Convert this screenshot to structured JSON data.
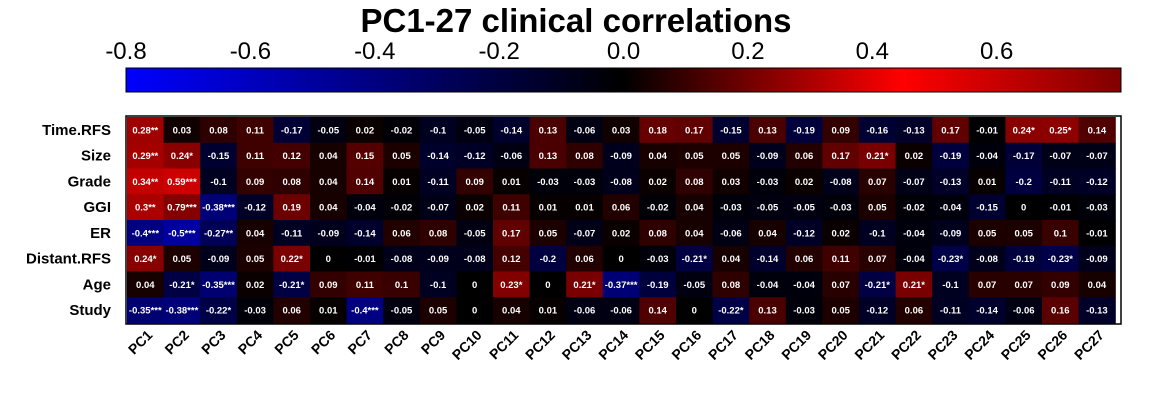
{
  "chart_data": {
    "type": "heatmap",
    "title": "PC1-27 clinical correlations",
    "colorbar": {
      "range": [
        -0.8,
        0.8
      ],
      "ticks": [
        "-0.8",
        "-0.6",
        "-0.4",
        "-0.2",
        "0.0",
        "0.2",
        "0.4",
        "0.6"
      ],
      "tick_values": [
        -0.8,
        -0.6,
        -0.4,
        -0.2,
        0.0,
        0.2,
        0.4,
        0.6
      ],
      "colors": [
        "#0000FF",
        "#000000",
        "#FF0000",
        "#800000"
      ]
    },
    "rows": [
      "Time.RFS",
      "Size",
      "Grade",
      "GGI",
      "ER",
      "Distant.RFS",
      "Age",
      "Study"
    ],
    "columns": [
      "PC1",
      "PC2",
      "PC3",
      "PC4",
      "PC5",
      "PC6",
      "PC7",
      "PC8",
      "PC9",
      "PC10",
      "PC11",
      "PC12",
      "PC13",
      "PC14",
      "PC15",
      "PC16",
      "PC17",
      "PC18",
      "PC19",
      "PC20",
      "PC21",
      "PC22",
      "PC23",
      "PC24",
      "PC25",
      "PC26",
      "PC27"
    ],
    "values": [
      [
        0.28,
        0.03,
        0.08,
        0.11,
        -0.17,
        -0.05,
        0.02,
        -0.02,
        -0.1,
        -0.05,
        -0.14,
        0.13,
        -0.06,
        0.03,
        0.18,
        0.17,
        -0.15,
        0.13,
        -0.19,
        0.09,
        -0.16,
        -0.13,
        0.17,
        -0.01,
        0.24,
        0.25,
        0.14
      ],
      [
        0.29,
        0.24,
        -0.15,
        0.11,
        0.12,
        0.04,
        0.15,
        0.05,
        -0.14,
        -0.12,
        -0.06,
        0.13,
        0.08,
        -0.09,
        0.04,
        0.05,
        0.05,
        -0.09,
        0.06,
        0.17,
        0.21,
        0.02,
        -0.19,
        -0.04,
        -0.17,
        -0.07,
        -0.07
      ],
      [
        0.34,
        0.59,
        -0.1,
        0.09,
        0.08,
        0.04,
        0.14,
        0.01,
        -0.11,
        0.09,
        0.01,
        -0.03,
        -0.03,
        -0.08,
        0.02,
        0.08,
        0.03,
        -0.03,
        0.02,
        -0.08,
        0.07,
        -0.07,
        -0.13,
        0.01,
        -0.2,
        -0.11,
        -0.12
      ],
      [
        0.3,
        0.79,
        -0.38,
        -0.12,
        0.19,
        0.04,
        -0.04,
        -0.02,
        -0.07,
        0.02,
        0.11,
        0.01,
        0.01,
        0.06,
        -0.02,
        0.04,
        -0.03,
        -0.05,
        -0.05,
        -0.03,
        0.05,
        -0.02,
        -0.04,
        -0.15,
        0,
        -0.01,
        -0.03
      ],
      [
        -0.4,
        -0.5,
        -0.27,
        0.04,
        -0.11,
        -0.09,
        -0.14,
        0.06,
        0.08,
        -0.05,
        0.17,
        0.05,
        -0.07,
        0.02,
        0.08,
        0.04,
        -0.06,
        0.04,
        -0.12,
        0.02,
        -0.1,
        -0.04,
        -0.09,
        0.05,
        0.05,
        0.1,
        -0.01
      ],
      [
        0.24,
        0.05,
        -0.09,
        0.05,
        0.22,
        0,
        -0.01,
        -0.08,
        -0.09,
        -0.08,
        0.12,
        -0.2,
        0.06,
        0,
        -0.03,
        -0.21,
        0.04,
        -0.14,
        0.06,
        0.11,
        0.07,
        -0.04,
        -0.23,
        -0.08,
        -0.19,
        -0.23,
        -0.09
      ],
      [
        0.04,
        -0.21,
        -0.35,
        0.02,
        -0.21,
        0.09,
        0.11,
        0.1,
        -0.1,
        0,
        0.23,
        0,
        0.21,
        -0.37,
        -0.19,
        -0.05,
        0.08,
        -0.04,
        -0.04,
        0.07,
        -0.21,
        0.21,
        -0.1,
        0.07,
        0.07,
        0.09,
        0.04
      ],
      [
        -0.35,
        -0.38,
        -0.22,
        -0.03,
        0.06,
        0.01,
        -0.4,
        -0.05,
        0.05,
        0,
        0.04,
        0.01,
        -0.06,
        -0.06,
        0.14,
        0,
        -0.22,
        0.13,
        -0.03,
        0.05,
        -0.12,
        0.06,
        -0.11,
        -0.14,
        -0.06,
        0.16,
        -0.13
      ]
    ],
    "labels": [
      [
        "0.28**",
        "0.03",
        "0.08",
        "0.11",
        "-0.17",
        "-0.05",
        "0.02",
        "-0.02",
        "-0.1",
        "-0.05",
        "-0.14",
        "0.13",
        "-0.06",
        "0.03",
        "0.18",
        "0.17",
        "-0.15",
        "0.13",
        "-0.19",
        "0.09",
        "-0.16",
        "-0.13",
        "0.17",
        "-0.01",
        "0.24*",
        "0.25*",
        "0.14"
      ],
      [
        "0.29**",
        "0.24*",
        "-0.15",
        "0.11",
        "0.12",
        "0.04",
        "0.15",
        "0.05",
        "-0.14",
        "-0.12",
        "-0.06",
        "0.13",
        "0.08",
        "-0.09",
        "0.04",
        "0.05",
        "0.05",
        "-0.09",
        "0.06",
        "0.17",
        "0.21*",
        "0.02",
        "-0.19",
        "-0.04",
        "-0.17",
        "-0.07",
        "-0.07"
      ],
      [
        "0.34**",
        "0.59***",
        "-0.1",
        "0.09",
        "0.08",
        "0.04",
        "0.14",
        "0.01",
        "-0.11",
        "0.09",
        "0.01",
        "-0.03",
        "-0.03",
        "-0.08",
        "0.02",
        "0.08",
        "0.03",
        "-0.03",
        "0.02",
        "-0.08",
        "0.07",
        "-0.07",
        "-0.13",
        "0.01",
        "-0.2",
        "-0.11",
        "-0.12"
      ],
      [
        "0.3**",
        "0.79***",
        "-0.38***",
        "-0.12",
        "0.19",
        "0.04",
        "-0.04",
        "-0.02",
        "-0.07",
        "0.02",
        "0.11",
        "0.01",
        "0.01",
        "0.06",
        "-0.02",
        "0.04",
        "-0.03",
        "-0.05",
        "-0.05",
        "-0.03",
        "0.05",
        "-0.02",
        "-0.04",
        "-0.15",
        "0",
        "-0.01",
        "-0.03"
      ],
      [
        "-0.4***",
        "-0.5***",
        "-0.27**",
        "0.04",
        "-0.11",
        "-0.09",
        "-0.14",
        "0.06",
        "0.08",
        "-0.05",
        "0.17",
        "0.05",
        "-0.07",
        "0.02",
        "0.08",
        "0.04",
        "-0.06",
        "0.04",
        "-0.12",
        "0.02",
        "-0.1",
        "-0.04",
        "-0.09",
        "0.05",
        "0.05",
        "0.1",
        "-0.01"
      ],
      [
        "0.24*",
        "0.05",
        "-0.09",
        "0.05",
        "0.22*",
        "0",
        "-0.01",
        "-0.08",
        "-0.09",
        "-0.08",
        "0.12",
        "-0.2",
        "0.06",
        "0",
        "-0.03",
        "-0.21*",
        "0.04",
        "-0.14",
        "0.06",
        "0.11",
        "0.07",
        "-0.04",
        "-0.23*",
        "-0.08",
        "-0.19",
        "-0.23*",
        "-0.09"
      ],
      [
        "0.04",
        "-0.21*",
        "-0.35***",
        "0.02",
        "-0.21*",
        "0.09",
        "0.11",
        "0.1",
        "-0.1",
        "0",
        "0.23*",
        "0",
        "0.21*",
        "-0.37***",
        "-0.19",
        "-0.05",
        "0.08",
        "-0.04",
        "-0.04",
        "0.07",
        "-0.21*",
        "0.21*",
        "-0.1",
        "0.07",
        "0.07",
        "0.09",
        "0.04"
      ],
      [
        "-0.35***",
        "-0.38***",
        "-0.22*",
        "-0.03",
        "0.06",
        "0.01",
        "-0.4***",
        "-0.05",
        "0.05",
        "0",
        "0.04",
        "0.01",
        "-0.06",
        "-0.06",
        "0.14",
        "0",
        "-0.22*",
        "0.13",
        "-0.03",
        "0.05",
        "-0.12",
        "0.06",
        "-0.11",
        "-0.14",
        "-0.06",
        "0.16",
        "-0.13"
      ]
    ]
  }
}
